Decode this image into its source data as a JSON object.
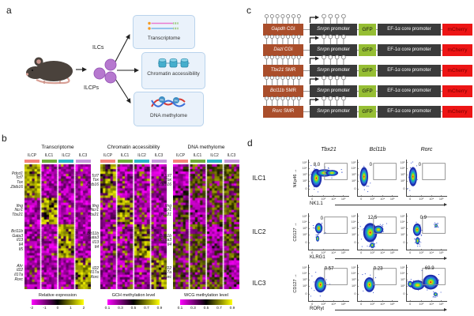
{
  "figure": {
    "panel_labels": {
      "a": "a",
      "b": "b",
      "c": "c",
      "d": "d"
    },
    "panel_a": {
      "ilcs_label": "ILCs",
      "ilcps_label": "ILCPs",
      "boxes": [
        {
          "icon": "rna-icon",
          "label": "Transcriptome"
        },
        {
          "icon": "nucleosome-icon",
          "label": "Chromatin accessibility"
        },
        {
          "icon": "dna-methyl-icon",
          "label": "DNA methylome"
        }
      ]
    },
    "panel_b": {
      "column_labels": [
        "ILCP",
        "ILC1",
        "ILC2",
        "ILC3"
      ],
      "column_colors": [
        "#f4847b",
        "#6fae3a",
        "#2cb5c8",
        "#c49bdb"
      ],
      "heatmap_palette": {
        "low": "#ff00ff",
        "mid": "#000000",
        "high": "#ffff00"
      },
      "heatmaps": [
        {
          "title": "Transcriptome",
          "mode": "expression",
          "gene_groups": [
            [
              "Pdcd1",
              "Tcf7",
              "Tox",
              "Zbtb16"
            ],
            [
              "Ifng",
              "Ncr1",
              "Tbx21"
            ],
            [
              "Bcl11b",
              "Gata3",
              "Il13",
              "Il4",
              "Il5"
            ],
            [
              "Ahr",
              "Il22",
              "Il17a",
              "Rorc"
            ]
          ],
          "legend_title": "Relative expression",
          "legend_ticks": [
            "-2",
            "-1",
            "0",
            "1",
            "2"
          ]
        },
        {
          "title": "Chromatin accessibility",
          "mode": "accessibility",
          "gene_groups": [
            [
              "Tcf7",
              "Tox",
              "Zbtb16"
            ],
            [
              "Ifng",
              "Ncr1",
              "Tbx21"
            ],
            [
              "Bcl11b",
              "Gata3",
              "Il13",
              "Il4"
            ],
            [
              "Il22",
              "Il17a",
              "Rorc"
            ]
          ],
          "legend_title": "GCH methylation level",
          "legend_ticks": [
            "0.1",
            "0.3",
            "0.5",
            "0.7",
            "0.9"
          ]
        },
        {
          "title": "DNA methylome",
          "mode": "methylation",
          "gene_groups": [
            [
              "Tcf7",
              "Tox",
              "Zbtb16"
            ],
            [
              "Ifng",
              "Ncr1",
              "Tbx21"
            ],
            [
              "Bcl11b",
              "Gata3",
              "Il4"
            ],
            [
              "Il22",
              "Il17a",
              "Rorc"
            ]
          ],
          "legend_title": "WCG methylation level",
          "legend_ticks": [
            "0.1",
            "0.3",
            "0.5",
            "0.7",
            "0.9"
          ]
        }
      ]
    },
    "panel_c": {
      "rows": [
        {
          "gene": "Gapdh",
          "region": "CGI"
        },
        {
          "gene": "Dazl",
          "region": "CGI"
        },
        {
          "gene": "Tbx21",
          "region": "SMR"
        },
        {
          "gene": "Bcl11b",
          "region": "SMR"
        },
        {
          "gene": "Rorc",
          "region": "SMR"
        }
      ],
      "promoter_gene": "Snrpn",
      "promoter_word": "promoter",
      "gfp_label": "GFP",
      "ef1a_label": "EF-1α core promoter",
      "mcherry_label": "mCherry",
      "colors": {
        "region_box": "#aa4e2b",
        "dark_box": "#3b3b3b",
        "gfp_box": "#96be34",
        "mcherry_box": "#ed1515",
        "mcherry_text": "#7a0000"
      }
    },
    "panel_d": {
      "column_titles": [
        "Tbx21",
        "Bcl11b",
        "Rorc"
      ],
      "rows": [
        {
          "label": "ILC1",
          "y_axis": "NKp46",
          "x_axis": "NK1.1",
          "gate_values": [
            "8.0",
            "0",
            "0"
          ]
        },
        {
          "label": "ILC2",
          "y_axis": "CD127",
          "x_axis": "KLRG1",
          "gate_values": [
            "0",
            "12.5",
            "0.9"
          ]
        },
        {
          "label": "ILC3",
          "y_axis": "CD127",
          "x_axis": "RORγt",
          "gate_values": [
            "0.57",
            "0.23",
            "69.9"
          ]
        }
      ],
      "y_ticks": [
        "10⁵",
        "10⁴",
        "10³",
        "10²",
        "0"
      ],
      "x_ticks": [
        "0",
        "10³",
        "10⁴",
        "10⁵"
      ]
    }
  }
}
